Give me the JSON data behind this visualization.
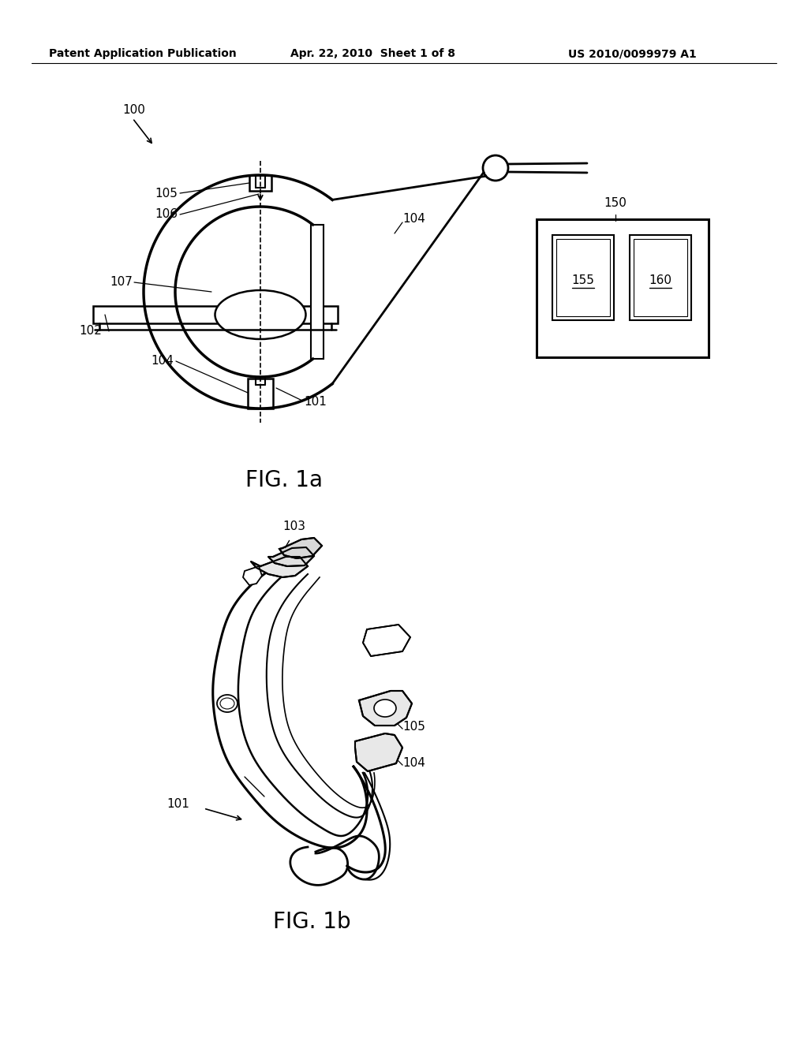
{
  "bg_color": "#ffffff",
  "header_left": "Patent Application Publication",
  "header_mid": "Apr. 22, 2010  Sheet 1 of 8",
  "header_right": "US 2010/0099979 A1",
  "fig1a_caption": "FIG. 1a",
  "fig1b_caption": "FIG. 1b",
  "label_100": "100",
  "label_101a": "101",
  "label_102": "102",
  "label_104a_top": "104",
  "label_104a_bot": "104",
  "label_105a": "105",
  "label_106": "106",
  "label_107": "107",
  "label_150": "150",
  "label_155": "155",
  "label_160": "160",
  "label_101b": "101",
  "label_103": "103",
  "label_104b": "104",
  "label_105b": "105"
}
